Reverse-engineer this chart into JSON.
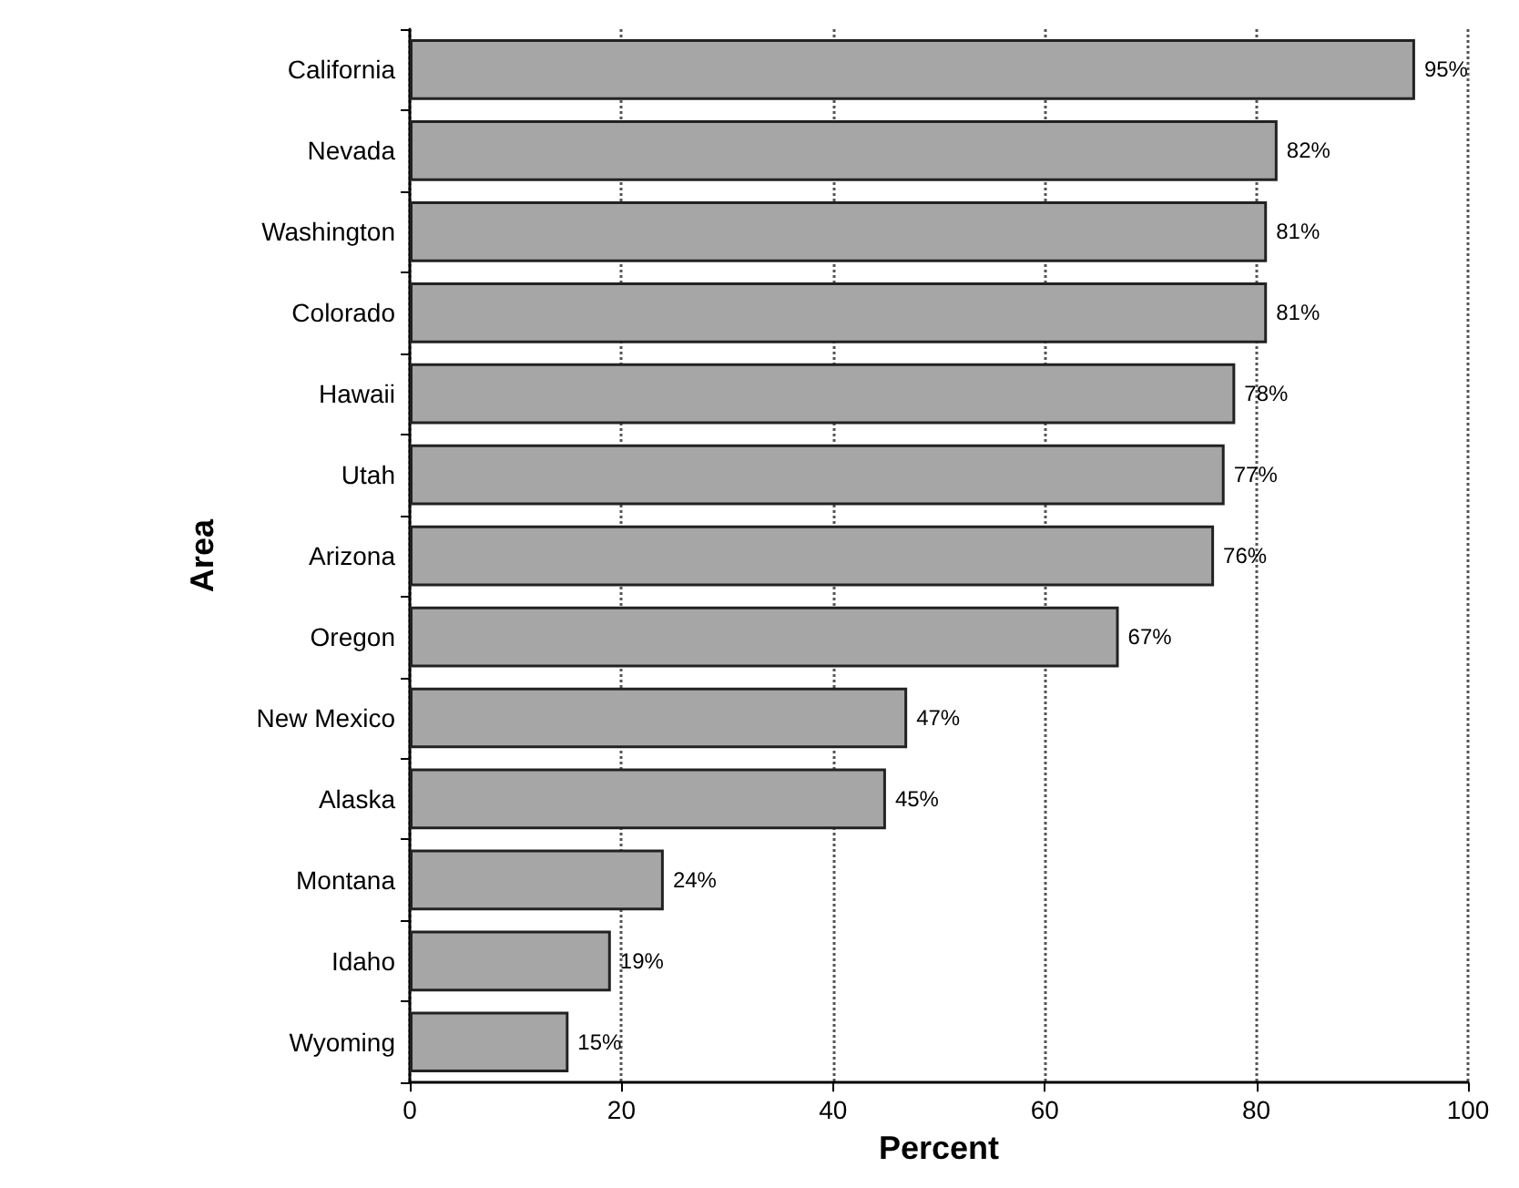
{
  "chart_data": {
    "type": "bar",
    "orientation": "horizontal",
    "xlabel": "Percent",
    "ylabel": "Area",
    "categories": [
      "California",
      "Nevada",
      "Washington",
      "Colorado",
      "Hawaii",
      "Utah",
      "Arizona",
      "Oregon",
      "New Mexico",
      "Alaska",
      "Montana",
      "Idaho",
      "Wyoming"
    ],
    "values": [
      95,
      82,
      81,
      81,
      78,
      77,
      76,
      67,
      47,
      45,
      24,
      19,
      15
    ],
    "value_labels": [
      "95%",
      "82%",
      "81%",
      "81%",
      "78%",
      "77%",
      "76%",
      "67%",
      "47%",
      "45%",
      "24%",
      "19%",
      "15%"
    ],
    "color": "#a6a6a6",
    "xlim": [
      0,
      100
    ],
    "xticks": [
      0,
      20,
      40,
      60,
      80,
      100
    ],
    "grid": "x"
  }
}
